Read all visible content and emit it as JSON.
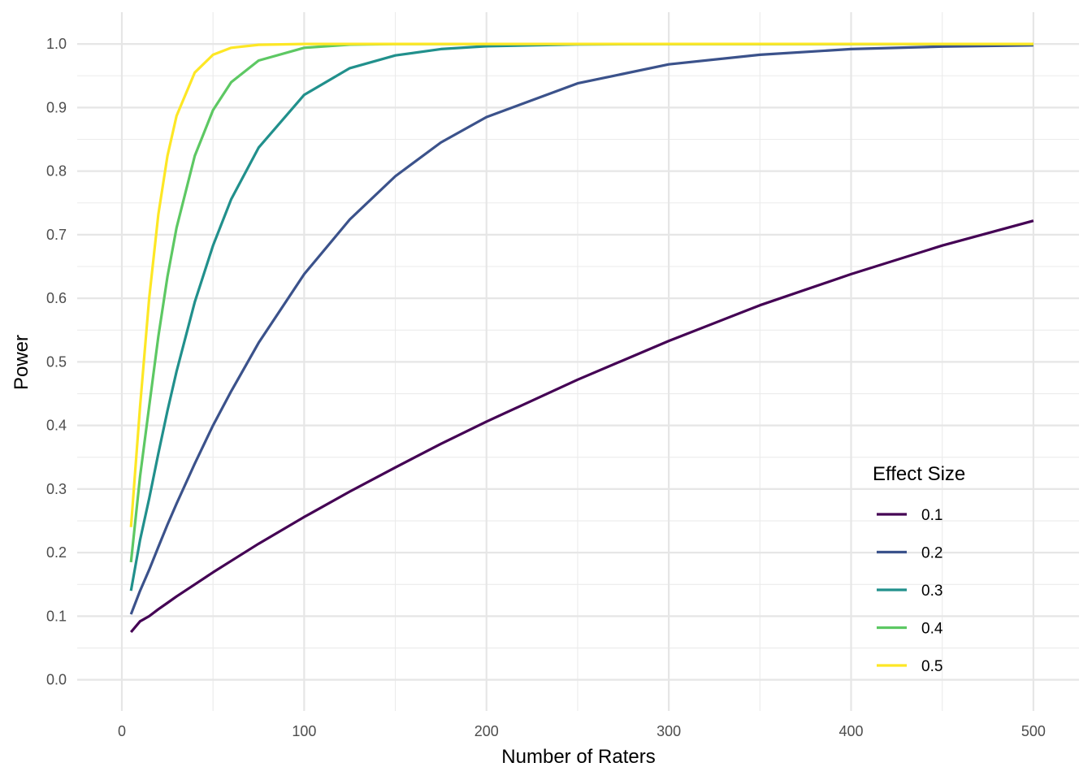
{
  "chart_data": {
    "type": "line",
    "title": "",
    "xlabel": "Number of Raters",
    "ylabel": "Power",
    "xlim": [
      -24.5,
      525
    ],
    "ylim": [
      -0.049,
      1.05
    ],
    "x_ticks": [
      0,
      100,
      200,
      300,
      400,
      500
    ],
    "x_tick_labels": [
      "0",
      "100",
      "200",
      "300",
      "400",
      "500"
    ],
    "y_ticks": [
      0,
      0.1,
      0.2,
      0.3,
      0.4,
      0.5,
      0.6,
      0.7,
      0.8,
      0.9,
      1.0
    ],
    "y_tick_labels": [
      "0.0",
      "0.1",
      "0.2",
      "0.3",
      "0.4",
      "0.5",
      "0.6",
      "0.7",
      "0.8",
      "0.9",
      "1.0"
    ],
    "grid": true,
    "legend": {
      "title": "Effect Size",
      "placement": "bottom-right"
    },
    "x": [
      5,
      10,
      15,
      20,
      25,
      30,
      40,
      50,
      60,
      75,
      100,
      125,
      150,
      175,
      200,
      250,
      300,
      350,
      400,
      450,
      500
    ],
    "series": [
      {
        "name": "0.1",
        "color": "#440154",
        "values": [
          0.075,
          0.092,
          0.1,
          0.111,
          0.121,
          0.131,
          0.15,
          0.169,
          0.187,
          0.214,
          0.256,
          0.296,
          0.334,
          0.371,
          0.406,
          0.472,
          0.533,
          0.589,
          0.638,
          0.683,
          0.722
        ]
      },
      {
        "name": "0.2",
        "color": "#3B528B",
        "values": [
          0.103,
          0.14,
          0.173,
          0.209,
          0.244,
          0.277,
          0.34,
          0.4,
          0.454,
          0.53,
          0.638,
          0.724,
          0.792,
          0.845,
          0.885,
          0.938,
          0.968,
          0.983,
          0.992,
          0.996,
          0.998
        ]
      },
      {
        "name": "0.3",
        "color": "#21908C",
        "values": [
          0.14,
          0.22,
          0.285,
          0.356,
          0.423,
          0.485,
          0.594,
          0.683,
          0.756,
          0.837,
          0.92,
          0.962,
          0.982,
          0.992,
          0.9965,
          0.9994,
          1.0,
          1.0,
          1.0,
          1.0,
          1.0
        ]
      },
      {
        "name": "0.4",
        "color": "#5DC863",
        "values": [
          0.185,
          0.32,
          0.43,
          0.54,
          0.634,
          0.711,
          0.824,
          0.896,
          0.94,
          0.974,
          0.994,
          0.999,
          1.0,
          1.0,
          1.0,
          1.0,
          1.0,
          1.0,
          1.0,
          1.0,
          1.0
        ]
      },
      {
        "name": "0.5",
        "color": "#FDE725",
        "values": [
          0.24,
          0.43,
          0.6,
          0.732,
          0.824,
          0.887,
          0.955,
          0.983,
          0.994,
          0.9987,
          1.0,
          1.0,
          1.0,
          1.0,
          1.0,
          1.0,
          1.0,
          1.0,
          1.0,
          1.0,
          1.0
        ]
      }
    ]
  }
}
